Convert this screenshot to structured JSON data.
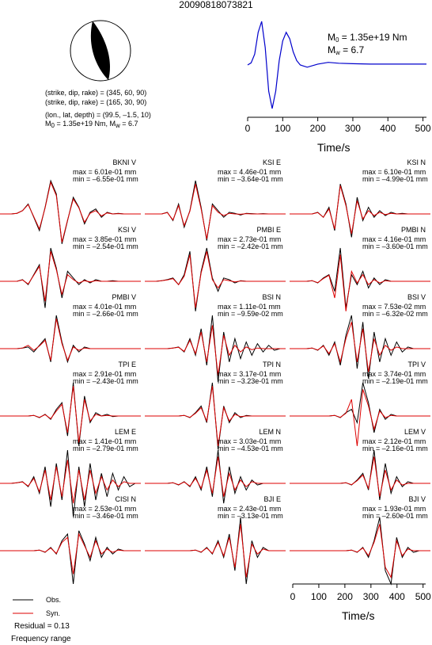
{
  "title": "20090818073821",
  "mechanism": {
    "line1": "(strike, dip, rake) = (345, 60, 90)",
    "line2": "(strike, dip, rake) = (165, 30, 90)",
    "line3": "(lon., lat, depth) = (99.5, –1.5, 10)",
    "line4_prefix": "M",
    "line4_mid": " = 1.35e+19 Nm, M",
    "line4_end": " = 6.7",
    "sub0": "0",
    "subw": "w"
  },
  "stf": {
    "m0_prefix": "M",
    "m0_sub": "0",
    "m0_value": " = 1.35e+19 Nm",
    "mw_prefix": "M",
    "mw_sub": "w",
    "mw_value": " = 6.7",
    "xlabel": "Time/s",
    "ticks": [
      "0",
      "100",
      "200",
      "300",
      "400",
      "500"
    ],
    "color": "#0000cc"
  },
  "bottom_axis": {
    "xlabel": "Time/s",
    "ticks": [
      "0",
      "100",
      "200",
      "300",
      "400",
      "500"
    ]
  },
  "legend": {
    "obs": "Obs.",
    "syn": "Syn.",
    "obs_color": "#000000",
    "syn_color": "#dd0000"
  },
  "residual": "Residual = 0.13",
  "frequency": "Frequency range",
  "chart_data": {
    "type": "line",
    "title": "20090818073821",
    "source_time_function": {
      "x": [
        0,
        10,
        20,
        30,
        40,
        50,
        60,
        70,
        80,
        90,
        100,
        110,
        120,
        130,
        140,
        150,
        170,
        200,
        230,
        260,
        300,
        350,
        400,
        450,
        500,
        510
      ],
      "y": [
        0.0,
        0.05,
        0.25,
        0.75,
        1.0,
        0.4,
        -0.6,
        -1.0,
        -0.6,
        0.1,
        0.55,
        0.75,
        0.6,
        0.3,
        0.1,
        0.0,
        -0.05,
        0.02,
        0.06,
        0.04,
        0.03,
        0.02,
        0.02,
        0.02,
        0.02,
        0.02
      ],
      "xlim": [
        0,
        510
      ],
      "xlabel": "Time/s"
    },
    "traces": [
      {
        "station": "BKNI V",
        "max": "max = 6.01e-01 mm",
        "min": "min = –6.55e-01 mm",
        "obs": [
          0,
          0,
          0,
          0.02,
          0.1,
          0.3,
          -0.1,
          -0.5,
          0.2,
          1.0,
          0.6,
          -0.9,
          -0.2,
          0.5,
          0.2,
          -0.3,
          0.05,
          0.15,
          -0.1,
          0.05,
          0,
          0.02,
          0,
          0,
          0,
          0
        ],
        "syn": [
          0,
          0,
          0,
          0.02,
          0.1,
          0.28,
          -0.08,
          -0.45,
          0.18,
          0.95,
          0.55,
          -0.85,
          -0.18,
          0.45,
          0.18,
          -0.25,
          0.02,
          0.1,
          -0.06,
          0.03,
          0,
          0.01,
          0,
          0,
          0,
          0
        ]
      },
      {
        "station": "KSI E",
        "max": "max = 4.46e-01 mm",
        "min": "min = –3.64e-01 mm",
        "obs": [
          0,
          0,
          0,
          0,
          0.05,
          -0.2,
          0.3,
          -0.4,
          0.1,
          1.0,
          0.2,
          -0.8,
          0.3,
          0.1,
          -0.1,
          0.05,
          0.02,
          -0.03,
          0.02,
          0.01,
          0,
          0.01,
          0,
          0,
          0,
          0
        ],
        "syn": [
          0,
          0,
          0,
          0,
          0.04,
          -0.18,
          0.25,
          -0.35,
          0.08,
          0.9,
          0.15,
          -0.75,
          0.25,
          0.05,
          -0.05,
          0.02,
          0,
          -0.01,
          0.01,
          0,
          0,
          0,
          0,
          0,
          0,
          0
        ]
      },
      {
        "station": "KSI N",
        "max": "max = 6.10e-01 mm",
        "min": "min = –4.99e-01 mm",
        "obs": [
          0,
          0,
          0,
          0,
          0,
          0.05,
          -0.1,
          0.2,
          -0.5,
          0.9,
          0.3,
          -0.7,
          0.5,
          -0.2,
          0.2,
          -0.1,
          0.1,
          -0.05,
          0.05,
          0,
          0.02,
          0,
          0,
          0,
          0,
          0
        ],
        "syn": [
          0,
          0,
          0,
          0,
          0,
          0.04,
          -0.1,
          0.15,
          -0.45,
          0.85,
          0.25,
          -0.6,
          0.4,
          -0.15,
          0.1,
          -0.05,
          0.05,
          -0.02,
          0.02,
          0,
          0,
          0,
          0,
          0,
          0,
          0
        ]
      },
      {
        "station": "KSI V",
        "max": "max = 3.85e-01 mm",
        "min": "min = –2.54e-01 mm",
        "obs": [
          0,
          0,
          0,
          0,
          0.05,
          -0.1,
          0.2,
          0.5,
          -0.8,
          1.0,
          0.4,
          -0.5,
          0.3,
          0.1,
          -0.1,
          0.05,
          -0.05,
          0.05,
          0,
          0,
          0.02,
          0,
          0,
          0,
          0,
          0
        ],
        "syn": [
          0,
          0,
          0,
          0,
          0.04,
          -0.08,
          0.18,
          0.45,
          -0.6,
          0.9,
          0.35,
          -0.4,
          0.2,
          0.05,
          -0.05,
          0.02,
          -0.02,
          0.02,
          0,
          0,
          0,
          0,
          0,
          0,
          0,
          0
        ]
      },
      {
        "station": "PMBI E",
        "max": "max = 2.73e-01 mm",
        "min": "min = –2.42e-01 mm",
        "obs": [
          0,
          0,
          0,
          0.02,
          0.05,
          0.1,
          -0.1,
          0.2,
          0.9,
          -0.9,
          0.3,
          1.0,
          0.1,
          -0.3,
          0.1,
          0.05,
          -0.05,
          0.02,
          0,
          0,
          0,
          0,
          0,
          0,
          0,
          0
        ],
        "syn": [
          0,
          0,
          0,
          0.02,
          0.04,
          0.08,
          -0.1,
          0.15,
          0.8,
          -0.8,
          0.25,
          0.9,
          0.05,
          -0.2,
          0.05,
          0.02,
          -0.02,
          0.01,
          0,
          0,
          0,
          0,
          0,
          0,
          0,
          0
        ]
      },
      {
        "station": "PMBI N",
        "max": "max = 4.16e-01 mm",
        "min": "min = –3.60e-01 mm",
        "obs": [
          0,
          0,
          0,
          0,
          0.02,
          -0.05,
          0.1,
          0.2,
          -0.3,
          1.0,
          -0.8,
          0.2,
          -0.1,
          0.3,
          -0.2,
          0.1,
          -0.1,
          0.05,
          0,
          0,
          0,
          0,
          0,
          0,
          0,
          0
        ],
        "syn": [
          0,
          0,
          0,
          0,
          0.02,
          -0.04,
          0.08,
          0.18,
          -0.5,
          0.8,
          -0.9,
          0.3,
          -0.05,
          0.2,
          -0.1,
          0.05,
          -0.05,
          0.02,
          0,
          0,
          0,
          0,
          0,
          0,
          0,
          0
        ]
      },
      {
        "station": "PMBI V",
        "max": "max = 4.01e-01 mm",
        "min": "min = –2.66e-01 mm",
        "obs": [
          0,
          0,
          0,
          0,
          0.02,
          0.05,
          -0.1,
          0.1,
          0.3,
          -0.4,
          1.0,
          0.2,
          -0.4,
          0.1,
          -0.1,
          0.05,
          0,
          0,
          0,
          0,
          0,
          0,
          0,
          0,
          0,
          0
        ],
        "syn": [
          0,
          0,
          0,
          0,
          0.02,
          0.1,
          -0.05,
          0.08,
          0.25,
          -0.35,
          0.9,
          0.15,
          -0.35,
          0.05,
          -0.05,
          0.02,
          0,
          0,
          0,
          0,
          0,
          0,
          0,
          0,
          0,
          0
        ]
      },
      {
        "station": "BSI N",
        "max": "max = 1.11e-01 mm",
        "min": "min = –9.59e-02 mm",
        "obs": [
          0,
          0,
          0,
          0,
          0,
          0.02,
          0.05,
          -0.1,
          0.3,
          -0.2,
          0.6,
          -0.5,
          1.0,
          -1.0,
          0.5,
          -0.4,
          0.3,
          -0.3,
          0.2,
          -0.2,
          0.15,
          -0.1,
          0.1,
          -0.05,
          0,
          0
        ],
        "syn": [
          0,
          0,
          0,
          0,
          0,
          0.02,
          0.04,
          -0.08,
          0.25,
          -0.15,
          0.5,
          -0.4,
          0.7,
          -0.8,
          0.4,
          -0.2,
          0.1,
          -0.1,
          0.05,
          -0.03,
          0.02,
          0,
          0,
          0,
          0,
          0
        ]
      },
      {
        "station": "BSI V",
        "max": "max = 7.53e-02 mm",
        "min": "min = –6.32e-02 mm",
        "obs": [
          0,
          0,
          0,
          0,
          0.02,
          -0.05,
          0.1,
          -0.2,
          0.2,
          -0.5,
          0.4,
          1.0,
          -0.6,
          0.8,
          -0.9,
          0.5,
          -0.4,
          0.3,
          -0.2,
          0.2,
          -0.1,
          0.05,
          0,
          0,
          0,
          0
        ],
        "syn": [
          0,
          0,
          0,
          0,
          0.02,
          -0.04,
          0.08,
          -0.15,
          0.15,
          -0.4,
          0.3,
          0.8,
          -0.4,
          0.6,
          -0.7,
          0.3,
          -0.2,
          0.1,
          -0.05,
          0.05,
          0,
          0,
          0,
          0,
          0,
          0
        ]
      },
      {
        "station": "TPI E",
        "max": "max = 2.91e-01 mm",
        "min": "min = –2.43e-01 mm",
        "obs": [
          0,
          0,
          0,
          0,
          0,
          0,
          0.02,
          -0.05,
          0.05,
          -0.1,
          0.2,
          0.4,
          -0.6,
          1.0,
          -0.9,
          0.6,
          -0.2,
          0.1,
          0,
          0.05,
          -0.02,
          0,
          0,
          0,
          0,
          0
        ],
        "syn": [
          0,
          0,
          0,
          0,
          0,
          0,
          0.02,
          -0.04,
          0.04,
          -0.08,
          0.15,
          0.35,
          -0.5,
          0.9,
          -0.8,
          0.5,
          -0.15,
          0.05,
          0,
          0.02,
          0,
          0,
          0,
          0,
          0,
          0
        ]
      },
      {
        "station": "TPI N",
        "max": "max = 3.17e-01 mm",
        "min": "min = –3.23e-01 mm",
        "obs": [
          0,
          0,
          0,
          0,
          0,
          0,
          0,
          0.02,
          -0.05,
          0.1,
          0.3,
          -0.2,
          1.0,
          -1.0,
          0.3,
          -0.2,
          0.1,
          -0.05,
          0.02,
          0,
          0,
          0,
          0,
          0,
          0,
          0
        ],
        "syn": [
          0,
          0,
          0,
          0,
          0,
          0,
          0,
          0.02,
          -0.04,
          0.08,
          0.25,
          -0.15,
          0.9,
          -0.9,
          0.25,
          -0.15,
          0.05,
          -0.02,
          0,
          0,
          0,
          0,
          0,
          0,
          0,
          0
        ]
      },
      {
        "station": "TPI V",
        "max": "max = 3.74e-01 mm",
        "min": "min = –2.19e-01 mm",
        "obs": [
          0,
          0,
          0,
          0,
          0,
          0,
          0,
          0,
          0.02,
          -0.05,
          0.1,
          0.2,
          -0.2,
          1.0,
          0.4,
          -0.5,
          0.2,
          -0.1,
          0.05,
          0,
          0,
          0,
          0,
          0,
          0,
          0
        ],
        "syn": [
          0,
          0,
          0,
          0,
          0,
          0,
          0,
          0,
          0.02,
          -0.04,
          0.08,
          0.5,
          -0.9,
          0.8,
          0.3,
          -0.4,
          0.15,
          -0.05,
          0.02,
          0,
          0,
          0,
          0,
          0,
          0,
          0
        ]
      },
      {
        "station": "LEM E",
        "max": "max = 1.41e-01 mm",
        "min": "min = –2.79e-01 mm",
        "obs": [
          0,
          0,
          0,
          0.02,
          0.05,
          -0.1,
          0.2,
          -0.3,
          0.5,
          -0.7,
          0.6,
          -0.5,
          1.0,
          -1.0,
          0.5,
          -0.7,
          0.6,
          -0.5,
          0.3,
          -0.4,
          0.3,
          -0.2,
          0.2,
          -0.1,
          0,
          0
        ],
        "syn": [
          0,
          0,
          0,
          0.02,
          0.04,
          -0.08,
          0.15,
          -0.25,
          0.4,
          -0.5,
          0.5,
          -0.4,
          0.7,
          -0.6,
          0.4,
          -0.5,
          0.4,
          -0.3,
          0.2,
          -0.2,
          0.1,
          -0.1,
          0.05,
          0,
          0,
          0
        ]
      },
      {
        "station": "LEM N",
        "max": "max = 3.03e-01 mm",
        "min": "min = –4.53e-01 mm",
        "obs": [
          0,
          0,
          0,
          0,
          0,
          0.02,
          -0.05,
          0.05,
          -0.1,
          0.2,
          -0.2,
          0.5,
          -0.4,
          1.0,
          -0.6,
          0.5,
          -0.3,
          0.2,
          -0.2,
          0.1,
          -0.05,
          0,
          0,
          0,
          0,
          0
        ],
        "syn": [
          0,
          0,
          0,
          0,
          0,
          0.02,
          -0.04,
          0.04,
          -0.08,
          0.15,
          -0.15,
          0.4,
          -0.3,
          0.8,
          -0.4,
          0.3,
          -0.2,
          0.1,
          -0.1,
          0.05,
          0,
          0,
          0,
          0,
          0,
          0
        ]
      },
      {
        "station": "LEM V",
        "max": "max = 2.12e-01 mm",
        "min": "min = –2.16e-01 mm",
        "obs": [
          0,
          0,
          0,
          0,
          0,
          0,
          0,
          0,
          0,
          0,
          0.02,
          -0.05,
          0.1,
          0.3,
          -0.2,
          1.0,
          -0.5,
          0.6,
          -0.3,
          0.2,
          -0.1,
          0.05,
          0,
          0,
          0,
          0
        ],
        "syn": [
          0,
          0,
          0,
          0,
          0,
          0,
          0,
          0,
          0,
          0,
          0.02,
          -0.04,
          0.08,
          0.25,
          -0.15,
          0.8,
          -0.4,
          0.4,
          -0.2,
          0.1,
          -0.05,
          0,
          0,
          0,
          0,
          0
        ]
      },
      {
        "station": "CISI N",
        "max": "max = 2.53e-01 mm",
        "min": "min = –3.46e-01 mm",
        "obs": [
          0,
          0,
          0,
          0,
          0,
          0,
          0,
          0.02,
          -0.05,
          0.1,
          -0.1,
          0.3,
          0.5,
          -1.0,
          0.6,
          0.2,
          -0.3,
          0.4,
          -0.2,
          0.1,
          -0.1,
          0.05,
          0,
          0,
          0,
          0
        ],
        "syn": [
          0,
          0,
          0,
          0,
          0,
          0,
          0,
          0.02,
          -0.04,
          0.08,
          -0.08,
          0.25,
          0.4,
          -0.7,
          0.5,
          0.15,
          -0.2,
          0.3,
          -0.1,
          0.05,
          -0.05,
          0.02,
          0,
          0,
          0,
          0
        ]
      },
      {
        "station": "BJI E",
        "max": "max = 2.43e-01 mm",
        "min": "min = –3.13e-01 mm",
        "obs": [
          0,
          0,
          0,
          0,
          0,
          0,
          0,
          0,
          0,
          0.02,
          -0.05,
          0.1,
          -0.1,
          0.3,
          -0.2,
          0.5,
          -0.6,
          1.0,
          -1.0,
          0.3,
          -0.2,
          0.1,
          0,
          0,
          0,
          0
        ],
        "syn": [
          0,
          0,
          0,
          0,
          0,
          0,
          0,
          0,
          0,
          0.02,
          -0.04,
          0.08,
          -0.08,
          0.25,
          -0.15,
          0.4,
          -0.5,
          0.8,
          -0.8,
          0.2,
          -0.1,
          0.05,
          0,
          0,
          0,
          0
        ]
      },
      {
        "station": "BJI V",
        "max": "max = 1.93e-01 mm",
        "min": "min = –2.60e-01 mm",
        "obs": [
          0,
          0,
          0,
          0,
          0,
          0,
          0,
          0,
          0,
          0,
          0,
          0.02,
          -0.05,
          0.1,
          -0.2,
          0.3,
          1.0,
          -0.6,
          -1.0,
          0.4,
          -0.2,
          0.1,
          -0.05,
          0,
          0,
          0
        ],
        "syn": [
          0,
          0,
          0,
          0,
          0,
          0,
          0,
          0,
          0,
          0,
          0,
          0.02,
          -0.04,
          0.08,
          -0.15,
          0.25,
          0.8,
          -0.5,
          -0.8,
          0.3,
          -0.15,
          0.05,
          0,
          0,
          0,
          0
        ]
      }
    ]
  }
}
